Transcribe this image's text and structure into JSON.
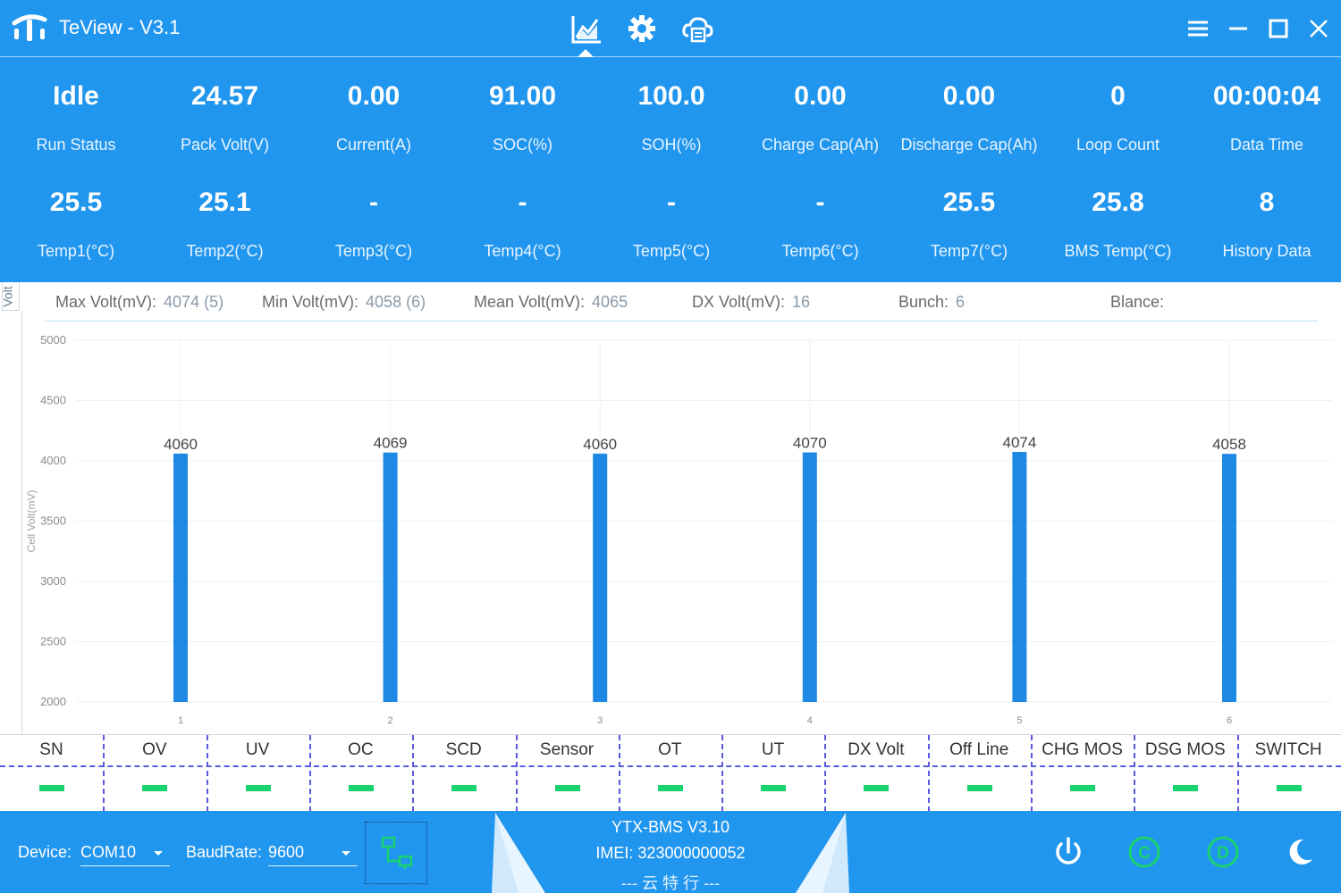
{
  "window": {
    "title": "TeView - V3.1"
  },
  "stats_row1": [
    {
      "value": "Idle",
      "label": "Run Status"
    },
    {
      "value": "24.57",
      "label": "Pack Volt(V)"
    },
    {
      "value": "0.00",
      "label": "Current(A)"
    },
    {
      "value": "91.00",
      "label": "SOC(%)"
    },
    {
      "value": "100.0",
      "label": "SOH(%)"
    },
    {
      "value": "0.00",
      "label": "Charge Cap(Ah)"
    },
    {
      "value": "0.00",
      "label": "Discharge Cap(Ah)"
    },
    {
      "value": "0",
      "label": "Loop Count"
    },
    {
      "value": "00:00:04",
      "label": "Data Time"
    }
  ],
  "stats_row2": [
    {
      "value": "25.5",
      "label": "Temp1(°C)"
    },
    {
      "value": "25.1",
      "label": "Temp2(°C)"
    },
    {
      "value": "-",
      "label": "Temp3(°C)"
    },
    {
      "value": "-",
      "label": "Temp4(°C)"
    },
    {
      "value": "-",
      "label": "Temp5(°C)"
    },
    {
      "value": "-",
      "label": "Temp6(°C)"
    },
    {
      "value": "25.5",
      "label": "Temp7(°C)"
    },
    {
      "value": "25.8",
      "label": "BMS Temp(°C)"
    },
    {
      "value": "8",
      "label": "History Data"
    }
  ],
  "chart_panel": {
    "tab_label": "Volt",
    "info": [
      {
        "label": "Max Volt(mV):",
        "value": "4074 (5)"
      },
      {
        "label": "Min Volt(mV):",
        "value": "4058 (6)"
      },
      {
        "label": "Mean Volt(mV):",
        "value": "4065"
      },
      {
        "label": "DX Volt(mV):",
        "value": "16"
      },
      {
        "label": "Bunch:",
        "value": "6"
      },
      {
        "label": "Blance:",
        "value": ""
      }
    ]
  },
  "chart_data": {
    "type": "bar",
    "categories": [
      "1",
      "2",
      "3",
      "4",
      "5",
      "6"
    ],
    "values": [
      4060,
      4069,
      4060,
      4070,
      4074,
      4058
    ],
    "ylabel": "Cell Volt(mV)",
    "ylim": [
      2000,
      5000
    ],
    "yticks": [
      2000,
      2500,
      3000,
      3500,
      4000,
      4500,
      5000
    ],
    "grid": true,
    "bar_color": "#1e88e5"
  },
  "alarms": [
    {
      "name": "SN"
    },
    {
      "name": "OV"
    },
    {
      "name": "UV"
    },
    {
      "name": "OC"
    },
    {
      "name": "SCD"
    },
    {
      "name": "Sensor"
    },
    {
      "name": "OT"
    },
    {
      "name": "UT"
    },
    {
      "name": "DX Volt"
    },
    {
      "name": "Off Line"
    },
    {
      "name": "CHG MOS"
    },
    {
      "name": "DSG MOS"
    },
    {
      "name": "SWITCH"
    }
  ],
  "footer": {
    "device_label": "Device:",
    "device_value": "COM10",
    "baud_label": "BaudRate:",
    "baud_value": "9600",
    "model": "YTX-BMS V3.10",
    "imei": "IMEI: 323000000052",
    "brand": "--- 云 特 行 ---"
  },
  "colors": {
    "primary": "#2196ee",
    "ok_indicator": "#19d36f",
    "bar": "#1e88e5",
    "status_icon": "#19d36f"
  },
  "icons": [
    "logo-icon",
    "chart-icon",
    "settings-icon",
    "cloud-icon",
    "menu-icon",
    "minimize-icon",
    "maximize-icon",
    "close-icon",
    "connect-icon",
    "power-icon",
    "charge-icon",
    "discharge-icon",
    "moon-icon"
  ]
}
